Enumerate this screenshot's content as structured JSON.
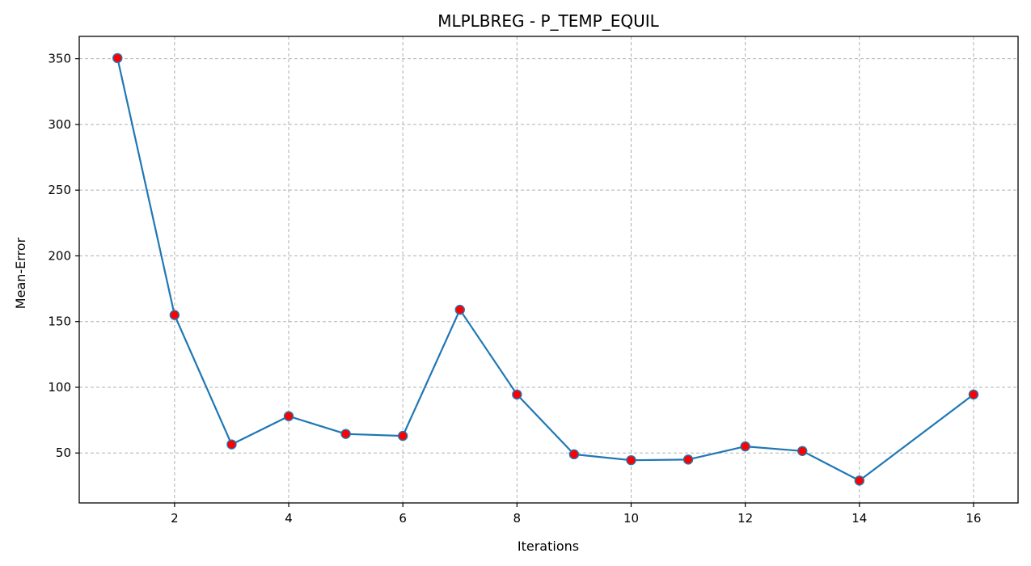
{
  "chart_data": {
    "type": "line",
    "title": "MLPLBREG - P_TEMP_EQUIL",
    "xlabel": "Iterations",
    "ylabel": "Mean-Error",
    "x": [
      1,
      2,
      3,
      4,
      5,
      6,
      7,
      8,
      9,
      10,
      11,
      12,
      13,
      14,
      16
    ],
    "series": [
      {
        "values": [
          350.5,
          155.0,
          56.5,
          78.0,
          64.5,
          63.0,
          159.0,
          94.5,
          49.0,
          44.5,
          45.0,
          55.0,
          51.5,
          29.0,
          94.5
        ]
      }
    ],
    "x_ticks": [
      2,
      4,
      6,
      8,
      10,
      12,
      14,
      16
    ],
    "y_ticks": [
      50,
      100,
      150,
      200,
      250,
      300,
      350
    ],
    "xlim": [
      0.33,
      16.78
    ],
    "ylim": [
      12.0,
      367.0
    ],
    "grid": true,
    "grid_style": "dashed",
    "colors": {
      "line": "#1f77b4",
      "marker_face": "#ff0000",
      "marker_edge": "#1f77b4",
      "grid": "#b0b0b0"
    }
  }
}
